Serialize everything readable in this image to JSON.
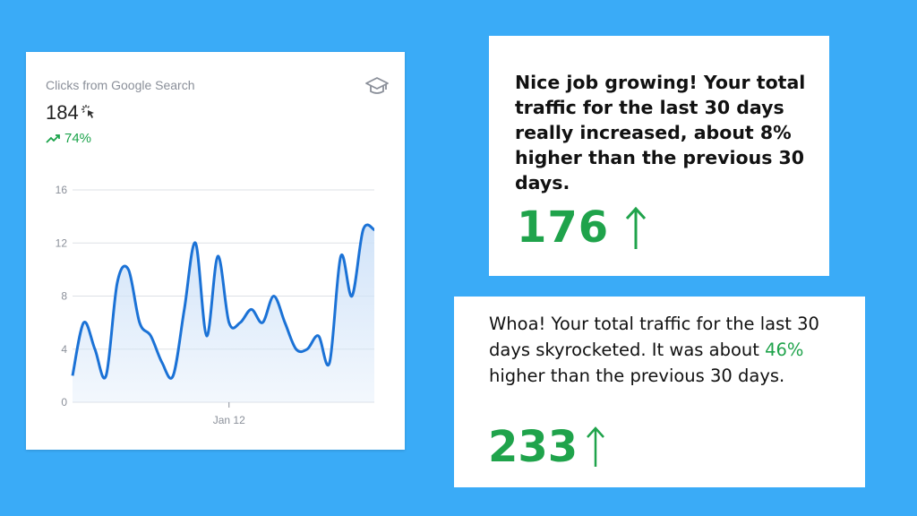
{
  "analytics_card": {
    "title": "Clicks from Google Search",
    "value": "184",
    "trend": "74%",
    "icons": [
      "graduation-cap-icon",
      "cursor-click-icon",
      "trending-up-icon"
    ]
  },
  "chart_data": {
    "type": "area",
    "x_tick_label": "Jan 12",
    "y_ticks": [
      0,
      4,
      8,
      12,
      16
    ],
    "ylim": [
      0,
      16
    ],
    "grid": true,
    "line_color": "#1b72d6",
    "fill_color": "#cfe2f8",
    "series": [
      {
        "values": [
          2,
          6,
          4,
          2,
          9,
          10,
          6,
          5,
          3,
          2,
          7,
          12,
          5,
          11,
          6,
          6,
          7,
          6,
          8,
          6,
          4,
          4,
          5,
          3,
          11,
          8,
          13,
          13
        ]
      }
    ]
  },
  "message1": {
    "text": "Nice job growing! Your total traffic for the last 30 days really increased, about 8% higher than the previous 30 days.",
    "number": "176"
  },
  "message2": {
    "text_before": "Whoa! Your total traffic for the last 30 days skyrocketed. It was about ",
    "percent": "46%",
    "text_after": " higher than the previous 30 days.",
    "number": "233"
  },
  "colors": {
    "background": "#3aabf7",
    "accent_green": "#1fa34b",
    "trend_green": "#1aa34a"
  }
}
